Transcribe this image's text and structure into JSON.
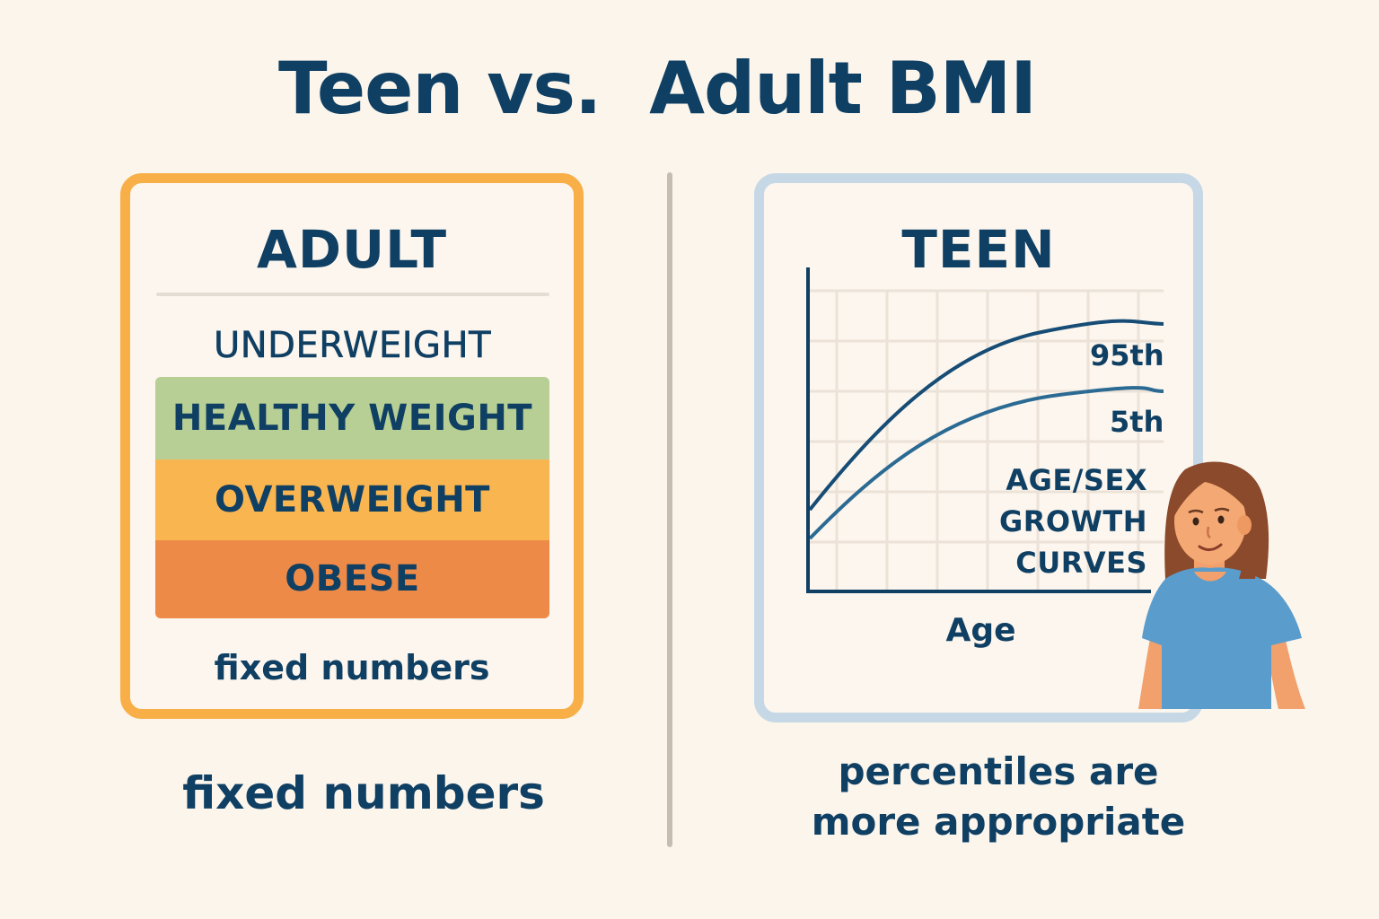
{
  "title": "Teen vs.  Adult BMI",
  "adult": {
    "heading": "ADULT",
    "categories": [
      {
        "label": "UNDERWEIGHT",
        "color": ""
      },
      {
        "label": "HEALTHY WEIGHT",
        "color": "#b7cf95"
      },
      {
        "label": "OVERWEIGHT",
        "color": "#f8b550"
      },
      {
        "label": "OBESE",
        "color": "#ee8a47"
      }
    ],
    "note": "fixed numbers",
    "caption": "fixed numbers",
    "border_color": "#f8af48"
  },
  "teen": {
    "heading": "TEEN",
    "curve_labels": [
      "95th",
      "5th"
    ],
    "growth_label": [
      "AGE/SEX",
      "GROWTH",
      "CURVES"
    ],
    "x_axis_label": "Age",
    "caption": [
      "percentiles are",
      "more appropriate"
    ],
    "border_color": "#c6d8e6"
  },
  "colors": {
    "text": "#0f3f63",
    "background": "#fbf5ec"
  },
  "icons": {
    "teen": "teen-girl-illustration"
  }
}
